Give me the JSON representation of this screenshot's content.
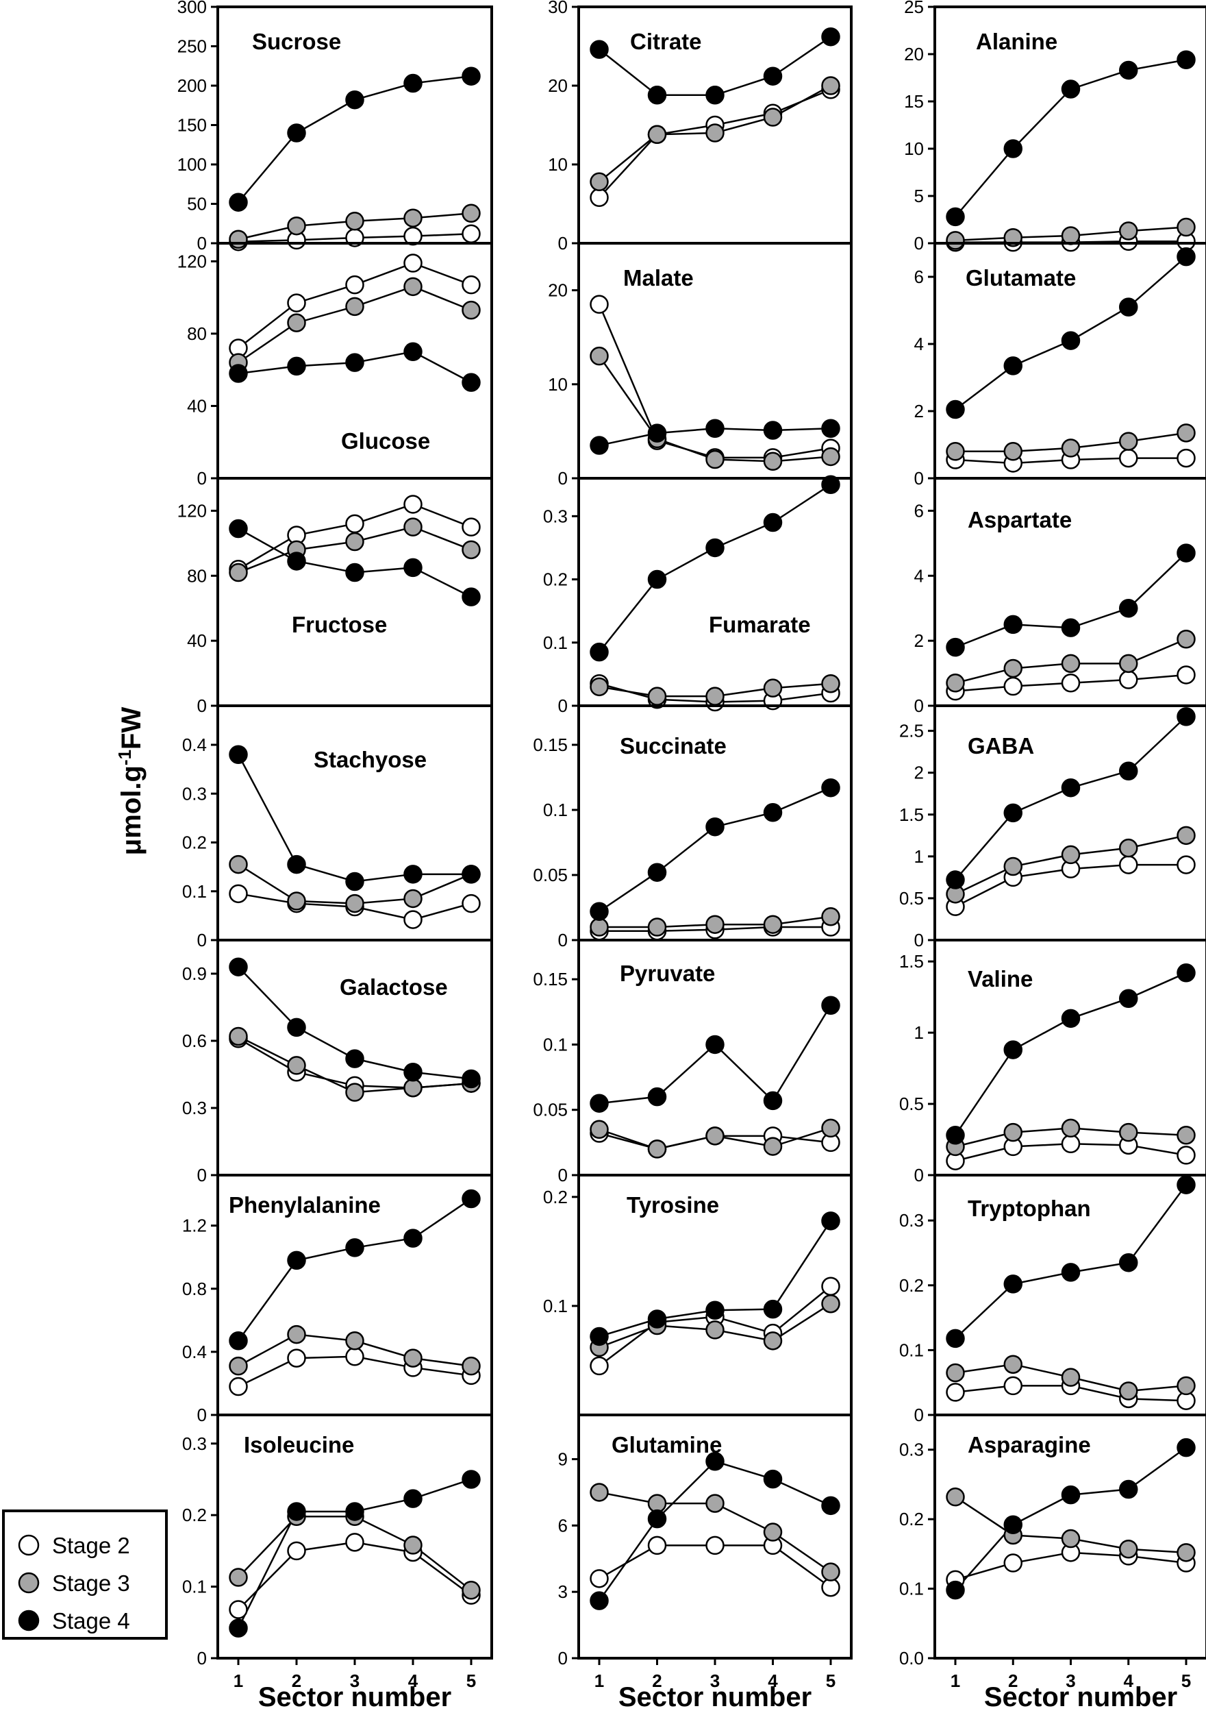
{
  "figure": {
    "ylabel": "μmol.g-1FW",
    "ylabel_main": "μmol.g",
    "ylabel_sup": "-1",
    "ylabel_tail": "FW",
    "xlabel": "Sector  number",
    "legend": [
      {
        "name": "Stage 2",
        "color": "#ffffff"
      },
      {
        "name": "Stage 3",
        "color": "#a6a6a6"
      },
      {
        "name": "Stage 4",
        "color": "#000000"
      }
    ]
  },
  "chart_data": [
    {
      "type": "line",
      "title": "Sucrose",
      "x": [
        1,
        2,
        3,
        4,
        5
      ],
      "ylim": [
        0,
        300
      ],
      "yticks": [
        "0",
        "50",
        "100",
        "150",
        "200",
        "250",
        "300"
      ],
      "series": [
        {
          "name": "Stage 2",
          "values": [
            2,
            4,
            7,
            9,
            12
          ]
        },
        {
          "name": "Stage 3",
          "values": [
            5,
            22,
            28,
            32,
            38
          ]
        },
        {
          "name": "Stage 4",
          "values": [
            52,
            140,
            182,
            203,
            212
          ]
        }
      ]
    },
    {
      "type": "line",
      "title": "Citrate",
      "x": [
        1,
        2,
        3,
        4,
        5
      ],
      "ylim": [
        0,
        30
      ],
      "yticks": [
        "0",
        "10",
        "20",
        "30"
      ],
      "series": [
        {
          "name": "Stage 2",
          "values": [
            5.8,
            13.8,
            15,
            16.5,
            19.5
          ]
        },
        {
          "name": "Stage 3",
          "values": [
            7.8,
            13.8,
            14,
            16,
            20
          ]
        },
        {
          "name": "Stage 4",
          "values": [
            24.6,
            18.8,
            18.8,
            21.2,
            26.2
          ]
        }
      ]
    },
    {
      "type": "line",
      "title": "Alanine",
      "x": [
        1,
        2,
        3,
        4,
        5
      ],
      "ylim": [
        0,
        25
      ],
      "yticks": [
        "0",
        "5",
        "10",
        "15",
        "20",
        "25"
      ],
      "series": [
        {
          "name": "Stage 2",
          "values": [
            0.1,
            0.1,
            0.1,
            0.2,
            0.2
          ]
        },
        {
          "name": "Stage 3",
          "values": [
            0.3,
            0.6,
            0.8,
            1.3,
            1.7
          ]
        },
        {
          "name": "Stage 4",
          "values": [
            2.8,
            10,
            16.3,
            18.3,
            19.4
          ]
        }
      ]
    },
    {
      "type": "line",
      "title": "Glucose",
      "x": [
        1,
        2,
        3,
        4,
        5
      ],
      "ylim": [
        0,
        130
      ],
      "yticks": [
        "0",
        "40",
        "80",
        "120"
      ],
      "series": [
        {
          "name": "Stage 2",
          "values": [
            72,
            97,
            107,
            119,
            107
          ]
        },
        {
          "name": "Stage 3",
          "values": [
            64,
            86,
            95,
            106,
            93
          ]
        },
        {
          "name": "Stage 4",
          "values": [
            58,
            62,
            64,
            70,
            53
          ]
        }
      ]
    },
    {
      "type": "line",
      "title": "Malate",
      "x": [
        1,
        2,
        3,
        4,
        5
      ],
      "ylim": [
        0,
        25
      ],
      "yticks": [
        "0",
        "10",
        "20"
      ],
      "series": [
        {
          "name": "Stage 2",
          "values": [
            18.5,
            4,
            2.2,
            2.2,
            3.2
          ]
        },
        {
          "name": "Stage 3",
          "values": [
            13,
            4.2,
            2,
            1.8,
            2.3
          ]
        },
        {
          "name": "Stage 4",
          "values": [
            3.5,
            4.8,
            5.3,
            5.1,
            5.3
          ]
        }
      ]
    },
    {
      "type": "line",
      "title": "Glutamate",
      "x": [
        1,
        2,
        3,
        4,
        5
      ],
      "ylim": [
        0,
        7
      ],
      "yticks": [
        "0",
        "2",
        "4",
        "6"
      ],
      "series": [
        {
          "name": "Stage 2",
          "values": [
            0.55,
            0.45,
            0.55,
            0.6,
            0.6
          ]
        },
        {
          "name": "Stage 3",
          "values": [
            0.8,
            0.8,
            0.9,
            1.1,
            1.35
          ]
        },
        {
          "name": "Stage 4",
          "values": [
            2.05,
            3.35,
            4.1,
            5.1,
            6.6
          ]
        }
      ]
    },
    {
      "type": "line",
      "title": "Fructose",
      "x": [
        1,
        2,
        3,
        4,
        5
      ],
      "ylim": [
        0,
        140
      ],
      "yticks": [
        "0",
        "40",
        "80",
        "120"
      ],
      "series": [
        {
          "name": "Stage 2",
          "values": [
            84,
            105,
            112,
            124,
            110
          ]
        },
        {
          "name": "Stage 3",
          "values": [
            82,
            96,
            101,
            110,
            96
          ]
        },
        {
          "name": "Stage 4",
          "values": [
            109,
            89,
            82,
            85,
            67
          ]
        }
      ]
    },
    {
      "type": "line",
      "title": "Fumarate",
      "x": [
        1,
        2,
        3,
        4,
        5
      ],
      "ylim": [
        0,
        0.36
      ],
      "yticks": [
        "0",
        "0.1",
        "0.2",
        "0.3"
      ],
      "series": [
        {
          "name": "Stage 2",
          "values": [
            0.035,
            0.01,
            0.006,
            0.008,
            0.02
          ]
        },
        {
          "name": "Stage 3",
          "values": [
            0.03,
            0.015,
            0.015,
            0.028,
            0.035
          ]
        },
        {
          "name": "Stage 4",
          "values": [
            0.085,
            0.2,
            0.25,
            0.29,
            0.35
          ]
        }
      ]
    },
    {
      "type": "line",
      "title": "Aspartate",
      "x": [
        1,
        2,
        3,
        4,
        5
      ],
      "ylim": [
        0,
        7
      ],
      "yticks": [
        "0",
        "2",
        "4",
        "6"
      ],
      "series": [
        {
          "name": "Stage 2",
          "values": [
            0.45,
            0.6,
            0.7,
            0.8,
            0.95
          ]
        },
        {
          "name": "Stage 3",
          "values": [
            0.7,
            1.15,
            1.3,
            1.3,
            2.05
          ]
        },
        {
          "name": "Stage 4",
          "values": [
            1.8,
            2.5,
            2.4,
            3,
            4.7
          ]
        }
      ]
    },
    {
      "type": "line",
      "title": "Stachyose",
      "x": [
        1,
        2,
        3,
        4,
        5
      ],
      "ylim": [
        0,
        0.48
      ],
      "yticks": [
        "0",
        "0.1",
        "0.2",
        "0.3",
        "0.4"
      ],
      "series": [
        {
          "name": "Stage 2",
          "values": [
            0.095,
            0.075,
            0.068,
            0.042,
            0.075
          ]
        },
        {
          "name": "Stage 3",
          "values": [
            0.155,
            0.08,
            0.075,
            0.085,
            0.135
          ]
        },
        {
          "name": "Stage 4",
          "values": [
            0.38,
            0.155,
            0.12,
            0.135,
            0.135
          ]
        }
      ]
    },
    {
      "type": "line",
      "title": "Succinate",
      "x": [
        1,
        2,
        3,
        4,
        5
      ],
      "ylim": [
        0,
        0.18
      ],
      "yticks": [
        "0",
        "0.05",
        "0.1",
        "0.15"
      ],
      "series": [
        {
          "name": "Stage 2",
          "values": [
            0.007,
            0.007,
            0.008,
            0.01,
            0.01
          ]
        },
        {
          "name": "Stage 3",
          "values": [
            0.01,
            0.01,
            0.012,
            0.012,
            0.018
          ]
        },
        {
          "name": "Stage 4",
          "values": [
            0.022,
            0.052,
            0.087,
            0.098,
            0.117
          ]
        }
      ]
    },
    {
      "type": "line",
      "title": "GABA",
      "x": [
        1,
        2,
        3,
        4,
        5
      ],
      "ylim": [
        0,
        2.8
      ],
      "yticks": [
        "0",
        "0.5",
        "1",
        "1.5",
        "2",
        "2.5"
      ],
      "series": [
        {
          "name": "Stage 2",
          "values": [
            0.4,
            0.75,
            0.85,
            0.9,
            0.9
          ]
        },
        {
          "name": "Stage 3",
          "values": [
            0.55,
            0.88,
            1.02,
            1.1,
            1.25
          ]
        },
        {
          "name": "Stage 4",
          "values": [
            0.72,
            1.52,
            1.82,
            2.02,
            2.67
          ]
        }
      ]
    },
    {
      "type": "line",
      "title": "Galactose",
      "x": [
        1,
        2,
        3,
        4,
        5
      ],
      "ylim": [
        0,
        1.05
      ],
      "yticks": [
        "0",
        "0.3",
        "0.6",
        "0.9"
      ],
      "series": [
        {
          "name": "Stage 2",
          "values": [
            0.61,
            0.46,
            0.4,
            0.39,
            0.41
          ]
        },
        {
          "name": "Stage 3",
          "values": [
            0.62,
            0.49,
            0.37,
            0.39,
            0.41
          ]
        },
        {
          "name": "Stage 4",
          "values": [
            0.93,
            0.66,
            0.52,
            0.46,
            0.43
          ]
        }
      ]
    },
    {
      "type": "line",
      "title": "Pyruvate",
      "x": [
        1,
        2,
        3,
        4,
        5
      ],
      "ylim": [
        0,
        0.18
      ],
      "yticks": [
        "0",
        "0.05",
        "0.1",
        "0.15"
      ],
      "series": [
        {
          "name": "Stage 2",
          "values": [
            0.032,
            0.02,
            0.03,
            0.03,
            0.025
          ]
        },
        {
          "name": "Stage 3",
          "values": [
            0.035,
            0.02,
            0.03,
            0.022,
            0.036
          ]
        },
        {
          "name": "Stage 4",
          "values": [
            0.055,
            0.06,
            0.1,
            0.057,
            0.13
          ]
        }
      ]
    },
    {
      "type": "line",
      "title": "Valine",
      "x": [
        1,
        2,
        3,
        4,
        5
      ],
      "ylim": [
        0,
        1.65
      ],
      "yticks": [
        "0",
        "0.5",
        "1",
        "1.5"
      ],
      "series": [
        {
          "name": "Stage 2",
          "values": [
            0.1,
            0.2,
            0.22,
            0.21,
            0.14
          ]
        },
        {
          "name": "Stage 3",
          "values": [
            0.2,
            0.3,
            0.33,
            0.3,
            0.28
          ]
        },
        {
          "name": "Stage 4",
          "values": [
            0.28,
            0.88,
            1.1,
            1.24,
            1.42
          ]
        }
      ]
    },
    {
      "type": "line",
      "title": "Phenylalanine",
      "x": [
        1,
        2,
        3,
        4,
        5
      ],
      "ylim": [
        0,
        1.52
      ],
      "yticks": [
        "0",
        "0.4",
        "0.8",
        "1.2"
      ],
      "series": [
        {
          "name": "Stage 2",
          "values": [
            0.18,
            0.36,
            0.37,
            0.3,
            0.25
          ]
        },
        {
          "name": "Stage 3",
          "values": [
            0.31,
            0.51,
            0.47,
            0.36,
            0.31
          ]
        },
        {
          "name": "Stage 4",
          "values": [
            0.47,
            0.98,
            1.06,
            1.12,
            1.37
          ]
        }
      ]
    },
    {
      "type": "line",
      "title": "Tyrosine",
      "x": [
        1,
        2,
        3,
        4,
        5
      ],
      "ylim": [
        0,
        0.22
      ],
      "yticks": [
        "0.1",
        "0.2"
      ],
      "series": [
        {
          "name": "Stage 2",
          "values": [
            0.045,
            0.085,
            0.09,
            0.075,
            0.118
          ]
        },
        {
          "name": "Stage 3",
          "values": [
            0.062,
            0.082,
            0.078,
            0.068,
            0.102
          ]
        },
        {
          "name": "Stage 4",
          "values": [
            0.072,
            0.088,
            0.096,
            0.097,
            0.178
          ]
        }
      ]
    },
    {
      "type": "line",
      "title": "Tryptophan",
      "x": [
        1,
        2,
        3,
        4,
        5
      ],
      "ylim": [
        0,
        0.37
      ],
      "yticks": [
        "0",
        "0.1",
        "0.2",
        "0.3"
      ],
      "series": [
        {
          "name": "Stage 2",
          "values": [
            0.035,
            0.045,
            0.045,
            0.025,
            0.022
          ]
        },
        {
          "name": "Stage 3",
          "values": [
            0.065,
            0.078,
            0.058,
            0.037,
            0.045
          ]
        },
        {
          "name": "Stage 4",
          "values": [
            0.118,
            0.202,
            0.22,
            0.235,
            0.355
          ]
        }
      ]
    },
    {
      "type": "line",
      "title": "Isoleucine",
      "x": [
        1,
        2,
        3,
        4,
        5
      ],
      "ylim": [
        0,
        0.34
      ],
      "yticks": [
        "0",
        "0.1",
        "0.2",
        "0.3"
      ],
      "series": [
        {
          "name": "Stage 2",
          "values": [
            0.068,
            0.15,
            0.162,
            0.148,
            0.088
          ]
        },
        {
          "name": "Stage 3",
          "values": [
            0.113,
            0.198,
            0.198,
            0.158,
            0.095
          ]
        },
        {
          "name": "Stage 4",
          "values": [
            0.042,
            0.205,
            0.205,
            0.223,
            0.25
          ]
        }
      ]
    },
    {
      "type": "line",
      "title": "Glutamine",
      "x": [
        1,
        2,
        3,
        4,
        5
      ],
      "ylim": [
        0,
        11
      ],
      "yticks": [
        "0",
        "3",
        "6",
        "9"
      ],
      "series": [
        {
          "name": "Stage 2",
          "values": [
            3.6,
            5.1,
            5.1,
            5.1,
            3.2
          ]
        },
        {
          "name": "Stage 3",
          "values": [
            7.5,
            7,
            7,
            5.7,
            3.9
          ]
        },
        {
          "name": "Stage 4",
          "values": [
            2.6,
            6.3,
            8.9,
            8.1,
            6.9
          ]
        }
      ]
    },
    {
      "type": "line",
      "title": "Asparagine",
      "x": [
        1,
        2,
        3,
        4,
        5
      ],
      "ylim": [
        0,
        0.35
      ],
      "yticks": [
        "0.0",
        "0.1",
        "0.2",
        "0.3"
      ],
      "series": [
        {
          "name": "Stage 2",
          "values": [
            0.113,
            0.137,
            0.152,
            0.147,
            0.137
          ]
        },
        {
          "name": "Stage 3",
          "values": [
            0.232,
            0.177,
            0.172,
            0.157,
            0.152
          ]
        },
        {
          "name": "Stage 4",
          "values": [
            0.098,
            0.192,
            0.235,
            0.243,
            0.303
          ]
        }
      ]
    }
  ]
}
